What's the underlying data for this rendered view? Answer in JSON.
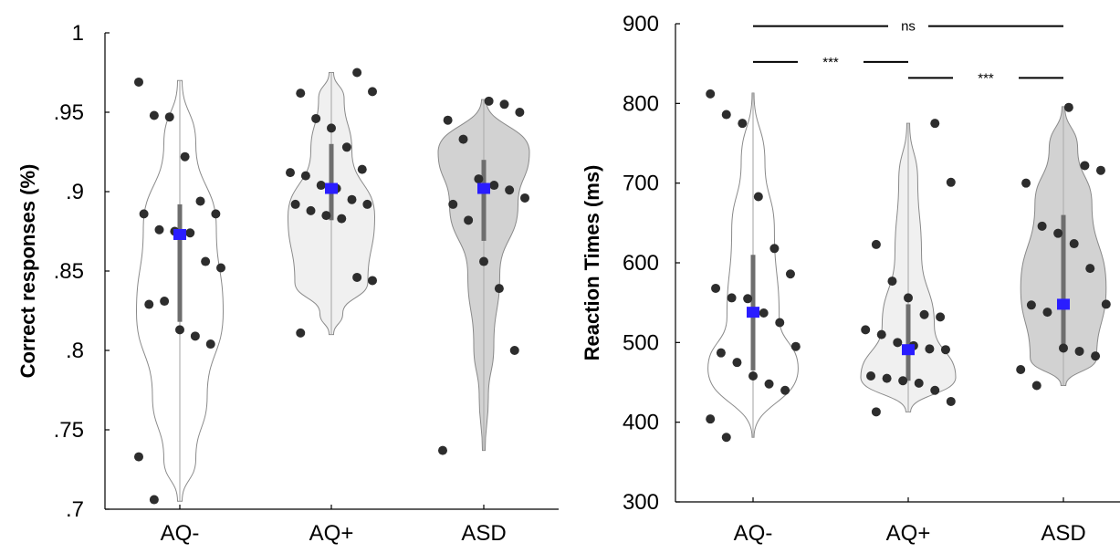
{
  "chart_data": [
    {
      "type": "violin",
      "ylabel": "Correct responses (%)",
      "ylim": [
        0.7,
        1.0
      ],
      "yticks": [
        0.7,
        0.75,
        0.8,
        0.85,
        0.9,
        0.95,
        1.0
      ],
      "ytick_labels": [
        ".7",
        ".75",
        ".8",
        ".85",
        ".9",
        ".95",
        "1"
      ],
      "categories": [
        "AQ-",
        "AQ+",
        "ASD"
      ],
      "groups": [
        {
          "name": "AQ-",
          "fill": "#ffffff",
          "mean": 0.873,
          "iqr": [
            0.818,
            0.892
          ],
          "range": [
            0.705,
            0.97
          ],
          "points": [
            0.969,
            0.948,
            0.947,
            0.922,
            0.894,
            0.886,
            0.886,
            0.876,
            0.875,
            0.874,
            0.856,
            0.852,
            0.829,
            0.831,
            0.813,
            0.809,
            0.804,
            0.733,
            0.706
          ]
        },
        {
          "name": "AQ+",
          "fill": "#f0f0f0",
          "mean": 0.902,
          "iqr": [
            0.882,
            0.93
          ],
          "range": [
            0.81,
            0.975
          ],
          "points": [
            0.975,
            0.963,
            0.962,
            0.946,
            0.94,
            0.928,
            0.914,
            0.912,
            0.91,
            0.904,
            0.902,
            0.895,
            0.892,
            0.892,
            0.888,
            0.885,
            0.883,
            0.846,
            0.844,
            0.811
          ]
        },
        {
          "name": "ASD",
          "fill": "#d2d2d2",
          "mean": 0.902,
          "iqr": [
            0.869,
            0.92
          ],
          "range": [
            0.737,
            0.958
          ],
          "points": [
            0.957,
            0.955,
            0.95,
            0.945,
            0.933,
            0.908,
            0.904,
            0.901,
            0.896,
            0.892,
            0.882,
            0.856,
            0.839,
            0.8,
            0.737
          ]
        }
      ]
    },
    {
      "type": "violin",
      "ylabel": "Reaction Times (ms)",
      "ylim": [
        300,
        900
      ],
      "yticks": [
        300,
        400,
        500,
        600,
        700,
        800,
        900
      ],
      "ytick_labels": [
        "300",
        "400",
        "500",
        "600",
        "700",
        "800",
        "900"
      ],
      "categories": [
        "AQ-",
        "AQ+",
        "ASD"
      ],
      "groups": [
        {
          "name": "AQ-",
          "fill": "#ffffff",
          "mean": 538,
          "iqr": [
            465,
            610
          ],
          "range": [
            381,
            813
          ],
          "points": [
            812,
            786,
            775,
            683,
            618,
            586,
            568,
            556,
            555,
            537,
            525,
            495,
            487,
            475,
            458,
            448,
            440,
            404,
            381
          ]
        },
        {
          "name": "AQ+",
          "fill": "#f0f0f0",
          "mean": 491,
          "iqr": [
            452,
            548
          ],
          "range": [
            413,
            775
          ],
          "points": [
            775,
            701,
            623,
            577,
            556,
            535,
            532,
            516,
            510,
            500,
            496,
            492,
            491,
            458,
            455,
            452,
            449,
            440,
            426,
            413
          ]
        },
        {
          "name": "ASD",
          "fill": "#d2d2d2",
          "mean": 548,
          "iqr": [
            497,
            660
          ],
          "range": [
            446,
            796
          ],
          "points": [
            795,
            722,
            716,
            700,
            646,
            637,
            624,
            593,
            548,
            547,
            538,
            493,
            489,
            483,
            466,
            446
          ]
        }
      ],
      "annotations": [
        {
          "text": "ns",
          "from": "AQ-",
          "to": "ASD",
          "y": 897
        },
        {
          "text": "***",
          "from": "AQ-",
          "to": "AQ+",
          "y": 852
        },
        {
          "text": "***",
          "from": "AQ+",
          "to": "ASD",
          "y": 832
        }
      ]
    }
  ]
}
